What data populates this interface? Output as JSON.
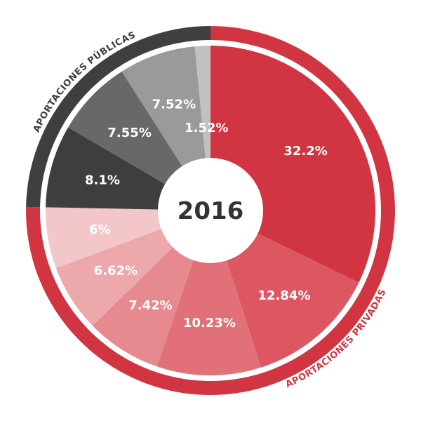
{
  "chart_data": {
    "type": "pie",
    "center_label": "2016",
    "groups": [
      {
        "label": "APORTACIONES PRIVADAS",
        "color": "#d13541",
        "text_color": "#d13541"
      },
      {
        "label": "APORTACIONES PÚBLICAS",
        "color": "#3f3f3f",
        "text_color": "#3f3f3f"
      }
    ],
    "slices": [
      {
        "label": "32.2%",
        "value": 32.2,
        "group": 0,
        "color": "#d13541"
      },
      {
        "label": "12.84%",
        "value": 12.84,
        "group": 0,
        "color": "#dc5761"
      },
      {
        "label": "10.23%",
        "value": 10.23,
        "group": 0,
        "color": "#e17078"
      },
      {
        "label": "7.42%",
        "value": 7.42,
        "group": 0,
        "color": "#e78a90"
      },
      {
        "label": "6.62%",
        "value": 6.62,
        "group": 0,
        "color": "#eda8ac"
      },
      {
        "label": "6%",
        "value": 6,
        "group": 0,
        "color": "#f3c6c9"
      },
      {
        "label": "8.1%",
        "value": 8.1,
        "group": 1,
        "color": "#3e3e3e"
      },
      {
        "label": "7.55%",
        "value": 7.55,
        "group": 1,
        "color": "#686868"
      },
      {
        "label": "7.52%",
        "value": 7.52,
        "group": 1,
        "color": "#9a9a9a"
      },
      {
        "label": "1.52%",
        "value": 1.52,
        "group": 1,
        "color": "#c1c1c1"
      }
    ]
  }
}
